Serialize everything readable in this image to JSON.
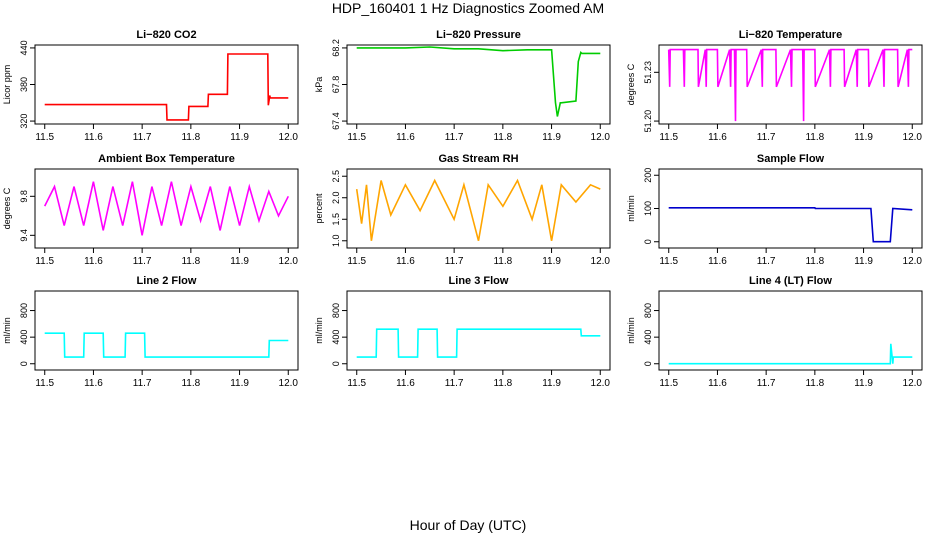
{
  "figure": {
    "title": "HDP_160401  1 Hz Diagnostics Zoomed AM",
    "xlabel": "Hour of Day (UTC)"
  },
  "chart_data": [
    {
      "type": "line",
      "title": "Li−820 CO2",
      "ylabel": "Licor ppm",
      "color": "#ff0000",
      "xlim": [
        11.5,
        12.0
      ],
      "ylim": [
        320,
        440
      ],
      "xticks": [
        "11.5",
        "11.6",
        "11.7",
        "11.8",
        "11.9",
        "12.0"
      ],
      "yticks": [
        "320",
        "380",
        "440"
      ],
      "ytick_values": [
        320,
        380,
        440
      ],
      "series": [
        {
          "x": [
            11.5,
            11.75,
            11.751,
            11.795,
            11.796,
            11.835,
            11.836,
            11.875,
            11.876,
            11.958,
            11.959,
            11.962,
            11.963,
            12.0
          ],
          "values": [
            347,
            347,
            322,
            322,
            344,
            344,
            364,
            364,
            430,
            430,
            346,
            362,
            358,
            358
          ]
        }
      ]
    },
    {
      "type": "line",
      "title": "Li−820 Pressure",
      "ylabel": "kPa",
      "color": "#00cc00",
      "xlim": [
        11.5,
        12.0
      ],
      "ylim": [
        67.4,
        68.2
      ],
      "xticks": [
        "11.5",
        "11.6",
        "11.7",
        "11.8",
        "11.9",
        "12.0"
      ],
      "yticks": [
        "67.4",
        "67.8",
        "68.2"
      ],
      "ytick_values": [
        67.4,
        67.8,
        68.2
      ],
      "series": [
        {
          "x": [
            11.5,
            11.6,
            11.65,
            11.7,
            11.75,
            11.8,
            11.85,
            11.9,
            11.908,
            11.912,
            11.918,
            11.92,
            11.95,
            11.955,
            11.96,
            11.962,
            11.97,
            12.0
          ],
          "values": [
            68.2,
            68.2,
            68.21,
            68.19,
            68.19,
            68.17,
            68.18,
            68.18,
            67.6,
            67.45,
            67.6,
            67.6,
            67.62,
            68.05,
            68.15,
            68.14,
            68.14,
            68.14
          ]
        }
      ]
    },
    {
      "type": "line",
      "title": "Li−820 Temperature",
      "ylabel": "degrees C",
      "color": "#ff00ff",
      "xlim": [
        11.5,
        12.0
      ],
      "ylim": [
        51.2,
        51.245
      ],
      "xticks": [
        "11.5",
        "11.6",
        "11.7",
        "11.8",
        "11.9",
        "12.0"
      ],
      "yticks": [
        "51.20",
        "51.23"
      ],
      "ytick_values": [
        51.2,
        51.23
      ],
      "series": [
        {
          "x": [
            11.5,
            11.502,
            11.503,
            11.53,
            11.532,
            11.533,
            11.56,
            11.561,
            11.575,
            11.577,
            11.578,
            11.6,
            11.601,
            11.625,
            11.627,
            11.628,
            11.635,
            11.637,
            11.638,
            11.66,
            11.661,
            11.69,
            11.692,
            11.693,
            11.72,
            11.721,
            11.75,
            11.752,
            11.753,
            11.775,
            11.777,
            11.778,
            11.8,
            11.801,
            11.83,
            11.832,
            11.833,
            11.86,
            11.861,
            11.885,
            11.887,
            11.888,
            11.91,
            11.911,
            11.94,
            11.942,
            11.943,
            11.97,
            11.971,
            11.99,
            11.992,
            11.993,
            12.0
          ],
          "values": [
            51.244,
            51.221,
            51.244,
            51.244,
            51.221,
            51.244,
            51.244,
            51.221,
            51.244,
            51.221,
            51.244,
            51.244,
            51.221,
            51.244,
            51.221,
            51.244,
            51.244,
            51.2,
            51.244,
            51.244,
            51.221,
            51.244,
            51.221,
            51.244,
            51.244,
            51.221,
            51.244,
            51.221,
            51.244,
            51.244,
            51.2,
            51.244,
            51.244,
            51.221,
            51.244,
            51.221,
            51.244,
            51.244,
            51.221,
            51.244,
            51.221,
            51.244,
            51.244,
            51.221,
            51.244,
            51.221,
            51.244,
            51.244,
            51.221,
            51.244,
            51.221,
            51.244,
            51.244
          ]
        }
      ]
    },
    {
      "type": "line",
      "title": "Ambient Box Temperature",
      "ylabel": "degrees C",
      "color": "#ff00ff",
      "xlim": [
        11.5,
        12.0
      ],
      "ylim": [
        9.3,
        10.05
      ],
      "xticks": [
        "11.5",
        "11.6",
        "11.7",
        "11.8",
        "11.9",
        "12.0"
      ],
      "yticks": [
        "9.4",
        "9.8"
      ],
      "ytick_values": [
        9.4,
        9.8
      ],
      "series": [
        {
          "x": [
            11.5,
            11.52,
            11.54,
            11.56,
            11.58,
            11.6,
            11.62,
            11.64,
            11.66,
            11.68,
            11.7,
            11.72,
            11.74,
            11.76,
            11.78,
            11.8,
            11.82,
            11.84,
            11.86,
            11.88,
            11.9,
            11.92,
            11.94,
            11.96,
            11.98,
            12.0
          ],
          "values": [
            9.7,
            9.9,
            9.5,
            9.9,
            9.5,
            9.95,
            9.45,
            9.9,
            9.5,
            9.95,
            9.4,
            9.9,
            9.5,
            9.95,
            9.5,
            9.9,
            9.55,
            9.9,
            9.45,
            9.9,
            9.5,
            9.9,
            9.55,
            9.85,
            9.6,
            9.8
          ]
        }
      ]
    },
    {
      "type": "line",
      "title": "Gas Stream RH",
      "ylabel": "percent",
      "color": "#ffa500",
      "xlim": [
        11.5,
        12.0
      ],
      "ylim": [
        0.9,
        2.6
      ],
      "xticks": [
        "11.5",
        "11.6",
        "11.7",
        "11.8",
        "11.9",
        "12.0"
      ],
      "yticks": [
        "1.0",
        "1.5",
        "2.0",
        "2.5"
      ],
      "ytick_values": [
        1.0,
        1.5,
        2.0,
        2.5
      ],
      "series": [
        {
          "x": [
            11.5,
            11.51,
            11.52,
            11.53,
            11.55,
            11.57,
            11.6,
            11.63,
            11.66,
            11.7,
            11.72,
            11.75,
            11.77,
            11.8,
            11.83,
            11.86,
            11.88,
            11.9,
            11.92,
            11.95,
            11.98,
            12.0
          ],
          "values": [
            2.2,
            1.4,
            2.3,
            1.0,
            2.4,
            1.6,
            2.3,
            1.7,
            2.4,
            1.5,
            2.3,
            1.0,
            2.3,
            1.8,
            2.4,
            1.5,
            2.3,
            1.0,
            2.3,
            1.9,
            2.3,
            2.2
          ]
        }
      ]
    },
    {
      "type": "line",
      "title": "Sample Flow",
      "ylabel": "ml/min",
      "color": "#0000cc",
      "xlim": [
        11.5,
        12.0
      ],
      "ylim": [
        -10,
        210
      ],
      "xticks": [
        "11.5",
        "11.6",
        "11.7",
        "11.8",
        "11.9",
        "12.0"
      ],
      "yticks": [
        "0",
        "100",
        "200"
      ],
      "ytick_values": [
        0,
        100,
        200
      ],
      "series": [
        {
          "x": [
            11.5,
            11.8,
            11.801,
            11.915,
            11.92,
            11.955,
            11.96,
            12.0
          ],
          "values": [
            102,
            102,
            100,
            100,
            0,
            0,
            100,
            96
          ]
        }
      ]
    },
    {
      "type": "line",
      "title": "Line 2 Flow",
      "ylabel": "ml/min",
      "color": "#00ffff",
      "xlim": [
        11.5,
        12.0
      ],
      "ylim": [
        -50,
        1050
      ],
      "xticks": [
        "11.5",
        "11.6",
        "11.7",
        "11.8",
        "11.9",
        "12.0"
      ],
      "yticks": [
        "0",
        "400",
        "800"
      ],
      "ytick_values": [
        0,
        400,
        800
      ],
      "series": [
        {
          "x": [
            11.5,
            11.54,
            11.541,
            11.58,
            11.581,
            11.62,
            11.621,
            11.665,
            11.666,
            11.705,
            11.706,
            11.96,
            11.961,
            12.0
          ],
          "values": [
            460,
            460,
            100,
            100,
            460,
            460,
            100,
            100,
            460,
            460,
            100,
            100,
            350,
            350
          ]
        }
      ]
    },
    {
      "type": "line",
      "title": "Line 3 Flow",
      "ylabel": "ml/min",
      "color": "#00ffff",
      "xlim": [
        11.5,
        12.0
      ],
      "ylim": [
        -50,
        1050
      ],
      "xticks": [
        "11.5",
        "11.6",
        "11.7",
        "11.8",
        "11.9",
        "12.0"
      ],
      "yticks": [
        "0",
        "400",
        "800"
      ],
      "ytick_values": [
        0,
        400,
        800
      ],
      "series": [
        {
          "x": [
            11.5,
            11.54,
            11.541,
            11.585,
            11.586,
            11.625,
            11.626,
            11.665,
            11.666,
            11.705,
            11.706,
            11.96,
            11.961,
            12.0
          ],
          "values": [
            100,
            100,
            520,
            520,
            100,
            100,
            520,
            520,
            100,
            100,
            520,
            520,
            420,
            420
          ]
        }
      ]
    },
    {
      "type": "line",
      "title": "Line 4 (LT) Flow",
      "ylabel": "ml/min",
      "color": "#00ffff",
      "xlim": [
        11.5,
        12.0
      ],
      "ylim": [
        -50,
        1050
      ],
      "xticks": [
        "11.5",
        "11.6",
        "11.7",
        "11.8",
        "11.9",
        "12.0"
      ],
      "yticks": [
        "0",
        "400",
        "800"
      ],
      "ytick_values": [
        0,
        400,
        800
      ],
      "series": [
        {
          "x": [
            11.5,
            11.955,
            11.956,
            11.96,
            11.961,
            12.0
          ],
          "values": [
            0,
            0,
            300,
            0,
            100,
            100
          ]
        }
      ]
    }
  ]
}
